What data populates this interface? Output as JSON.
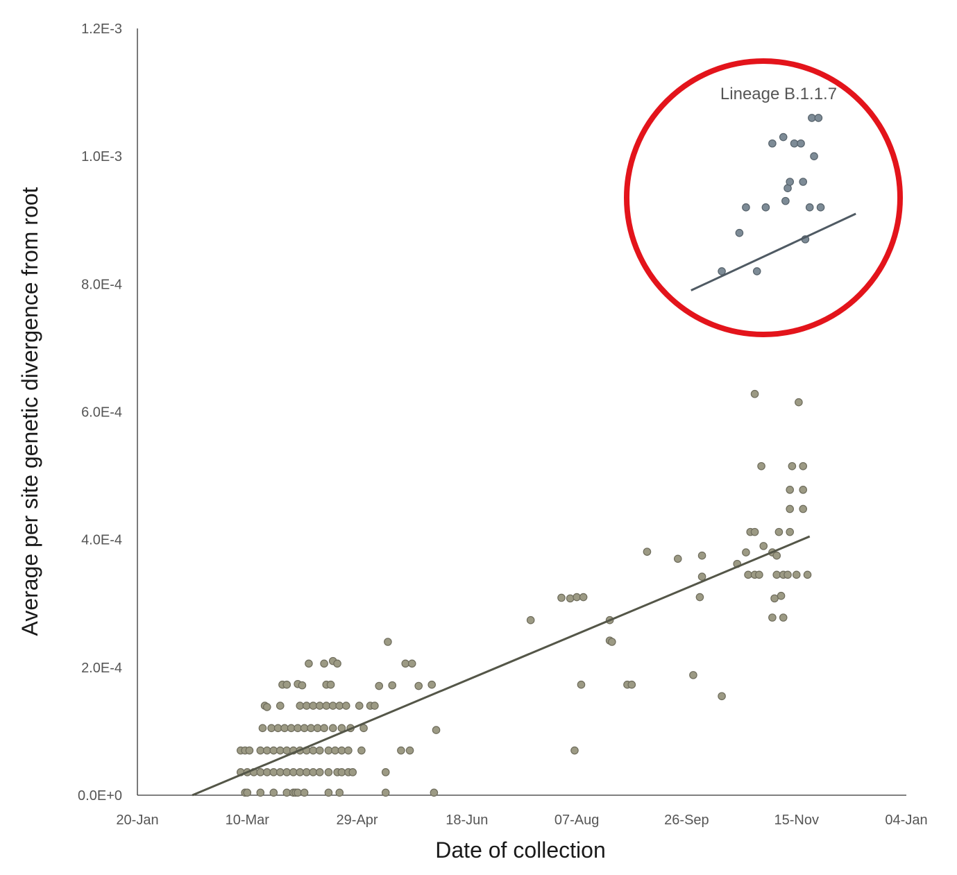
{
  "chart_data": {
    "type": "scatter",
    "xlabel": "Date of collection",
    "ylabel": "Average per site genetic divergence from root",
    "x_ticks": [
      "20-Jan",
      "10-Mar",
      "29-Apr",
      "18-Jun",
      "07-Aug",
      "26-Sep",
      "15-Nov",
      "04-Jan"
    ],
    "y_ticks": [
      "0.0E+0",
      "2.0E-4",
      "4.0E-4",
      "6.0E-4",
      "8.0E-4",
      "1.0E-3",
      "1.2E-3"
    ],
    "xlim": [
      "2020-01-20",
      "2021-01-04"
    ],
    "ylim": [
      0,
      0.0012
    ],
    "grid": false,
    "colors": {
      "main_points": "#9c9a84",
      "main_point_edge": "#6e6c5c",
      "main_trend": "#545648",
      "inset_points": "#7d8b96",
      "inset_point_edge": "#56626b",
      "inset_trend": "#4f5a63",
      "highlight_circle": "#e3141b",
      "axis": "#333333"
    },
    "series": [
      {
        "data": [
          [
            "2020-03-09",
            4e-06
          ],
          [
            "2020-03-10",
            4e-06
          ],
          [
            "2020-03-16",
            4e-06
          ],
          [
            "2020-03-22",
            4e-06
          ],
          [
            "2020-03-28",
            4e-06
          ],
          [
            "2020-03-31",
            4e-06
          ],
          [
            "2020-04-01",
            4e-06
          ],
          [
            "2020-04-02",
            4e-06
          ],
          [
            "2020-04-05",
            4e-06
          ],
          [
            "2020-04-16",
            4e-06
          ],
          [
            "2020-04-21",
            4e-06
          ],
          [
            "2020-05-12",
            4e-06
          ],
          [
            "2020-06-03",
            4e-06
          ],
          [
            "2020-03-07",
            3.6e-05
          ],
          [
            "2020-03-10",
            3.6e-05
          ],
          [
            "2020-03-13",
            3.6e-05
          ],
          [
            "2020-03-16",
            3.6e-05
          ],
          [
            "2020-03-19",
            3.6e-05
          ],
          [
            "2020-03-22",
            3.6e-05
          ],
          [
            "2020-03-25",
            3.6e-05
          ],
          [
            "2020-03-28",
            3.6e-05
          ],
          [
            "2020-03-31",
            3.6e-05
          ],
          [
            "2020-04-03",
            3.6e-05
          ],
          [
            "2020-04-06",
            3.6e-05
          ],
          [
            "2020-04-09",
            3.6e-05
          ],
          [
            "2020-04-12",
            3.6e-05
          ],
          [
            "2020-04-16",
            3.6e-05
          ],
          [
            "2020-04-20",
            3.6e-05
          ],
          [
            "2020-04-22",
            3.6e-05
          ],
          [
            "2020-04-25",
            3.6e-05
          ],
          [
            "2020-04-27",
            3.6e-05
          ],
          [
            "2020-05-12",
            3.6e-05
          ],
          [
            "2020-03-07",
            7e-05
          ],
          [
            "2020-03-09",
            7e-05
          ],
          [
            "2020-03-11",
            7e-05
          ],
          [
            "2020-03-16",
            7e-05
          ],
          [
            "2020-03-19",
            7e-05
          ],
          [
            "2020-03-22",
            7e-05
          ],
          [
            "2020-03-25",
            7e-05
          ],
          [
            "2020-03-28",
            7e-05
          ],
          [
            "2020-03-31",
            7e-05
          ],
          [
            "2020-04-03",
            7e-05
          ],
          [
            "2020-04-06",
            7e-05
          ],
          [
            "2020-04-09",
            7e-05
          ],
          [
            "2020-04-12",
            7e-05
          ],
          [
            "2020-04-16",
            7e-05
          ],
          [
            "2020-04-19",
            7e-05
          ],
          [
            "2020-04-22",
            7e-05
          ],
          [
            "2020-04-25",
            7e-05
          ],
          [
            "2020-05-01",
            7e-05
          ],
          [
            "2020-05-19",
            7e-05
          ],
          [
            "2020-05-23",
            7e-05
          ],
          [
            "2020-08-06",
            7e-05
          ],
          [
            "2020-03-17",
            0.000105
          ],
          [
            "2020-03-21",
            0.000105
          ],
          [
            "2020-03-24",
            0.000105
          ],
          [
            "2020-03-27",
            0.000105
          ],
          [
            "2020-03-30",
            0.000105
          ],
          [
            "2020-04-02",
            0.000105
          ],
          [
            "2020-04-05",
            0.000105
          ],
          [
            "2020-04-08",
            0.000105
          ],
          [
            "2020-04-11",
            0.000105
          ],
          [
            "2020-04-14",
            0.000105
          ],
          [
            "2020-04-18",
            0.000105
          ],
          [
            "2020-04-22",
            0.000105
          ],
          [
            "2020-04-26",
            0.000105
          ],
          [
            "2020-05-02",
            0.000105
          ],
          [
            "2020-06-04",
            0.000102
          ],
          [
            "2020-03-18",
            0.00014
          ],
          [
            "2020-03-19",
            0.000138
          ],
          [
            "2020-03-25",
            0.00014
          ],
          [
            "2020-04-03",
            0.00014
          ],
          [
            "2020-04-06",
            0.00014
          ],
          [
            "2020-04-09",
            0.00014
          ],
          [
            "2020-04-12",
            0.00014
          ],
          [
            "2020-04-15",
            0.00014
          ],
          [
            "2020-04-18",
            0.00014
          ],
          [
            "2020-04-21",
            0.00014
          ],
          [
            "2020-04-24",
            0.00014
          ],
          [
            "2020-04-30",
            0.00014
          ],
          [
            "2020-05-05",
            0.00014
          ],
          [
            "2020-05-07",
            0.00014
          ],
          [
            "2020-03-26",
            0.000173
          ],
          [
            "2020-03-28",
            0.000173
          ],
          [
            "2020-04-02",
            0.000174
          ],
          [
            "2020-04-04",
            0.000172
          ],
          [
            "2020-04-15",
            0.000173
          ],
          [
            "2020-04-17",
            0.000173
          ],
          [
            "2020-05-09",
            0.000171
          ],
          [
            "2020-05-15",
            0.000172
          ],
          [
            "2020-05-27",
            0.000171
          ],
          [
            "2020-06-02",
            0.000173
          ],
          [
            "2020-08-09",
            0.000173
          ],
          [
            "2020-08-30",
            0.000173
          ],
          [
            "2020-09-01",
            0.000173
          ],
          [
            "2020-04-07",
            0.000206
          ],
          [
            "2020-04-14",
            0.000206
          ],
          [
            "2020-04-18",
            0.00021
          ],
          [
            "2020-04-20",
            0.000206
          ],
          [
            "2020-05-21",
            0.000206
          ],
          [
            "2020-05-24",
            0.000206
          ],
          [
            "2020-05-13",
            0.00024
          ],
          [
            "2020-07-17",
            0.000274
          ],
          [
            "2020-07-31",
            0.000309
          ],
          [
            "2020-08-04",
            0.000308
          ],
          [
            "2020-08-07",
            0.00031
          ],
          [
            "2020-08-10",
            0.00031
          ],
          [
            "2020-08-22",
            0.000274
          ],
          [
            "2020-08-22",
            0.000242
          ],
          [
            "2020-08-23",
            0.00024
          ],
          [
            "2020-09-08",
            0.000381
          ],
          [
            "2020-09-22",
            0.00037
          ],
          [
            "2020-09-29",
            0.000188
          ],
          [
            "2020-10-02",
            0.00031
          ],
          [
            "2020-10-03",
            0.000342
          ],
          [
            "2020-10-03",
            0.000375
          ],
          [
            "2020-10-12",
            0.000155
          ],
          [
            "2020-10-19",
            0.000362
          ],
          [
            "2020-10-23",
            0.00038
          ],
          [
            "2020-10-25",
            0.000412
          ],
          [
            "2020-10-24",
            0.000345
          ],
          [
            "2020-10-27",
            0.000345
          ],
          [
            "2020-10-29",
            0.000345
          ],
          [
            "2020-10-27",
            0.000412
          ],
          [
            "2020-10-27",
            0.000628
          ],
          [
            "2020-10-30",
            0.000515
          ],
          [
            "2020-10-31",
            0.00039
          ],
          [
            "2020-11-04",
            0.000278
          ],
          [
            "2020-11-05",
            0.000308
          ],
          [
            "2020-11-06",
            0.000345
          ],
          [
            "2020-11-07",
            0.000412
          ],
          [
            "2020-11-08",
            0.000312
          ],
          [
            "2020-11-09",
            0.000278
          ],
          [
            "2020-11-09",
            0.000345
          ],
          [
            "2020-11-04",
            0.00038
          ],
          [
            "2020-11-06",
            0.000375
          ],
          [
            "2020-11-11",
            0.000345
          ],
          [
            "2020-11-12",
            0.000448
          ],
          [
            "2020-11-12",
            0.000412
          ],
          [
            "2020-11-12",
            0.000478
          ],
          [
            "2020-11-13",
            0.000515
          ],
          [
            "2020-11-15",
            0.000345
          ],
          [
            "2020-11-16",
            0.000615
          ],
          [
            "2020-11-18",
            0.000515
          ],
          [
            "2020-11-18",
            0.000478
          ],
          [
            "2020-11-18",
            0.000448
          ],
          [
            "2020-11-20",
            0.000345
          ]
        ]
      },
      {
        "data": [
          [
            "2020-10-12",
            0.00082
          ],
          [
            "2020-10-20",
            0.00088
          ],
          [
            "2020-10-23",
            0.00092
          ],
          [
            "2020-10-28",
            0.00082
          ],
          [
            "2020-11-01",
            0.00092
          ],
          [
            "2020-11-04",
            0.00102
          ],
          [
            "2020-11-09",
            0.00103
          ],
          [
            "2020-11-10",
            0.00093
          ],
          [
            "2020-11-11",
            0.00095
          ],
          [
            "2020-11-12",
            0.00096
          ],
          [
            "2020-11-14",
            0.00102
          ],
          [
            "2020-11-17",
            0.00102
          ],
          [
            "2020-11-18",
            0.00096
          ],
          [
            "2020-11-19",
            0.00087
          ],
          [
            "2020-11-21",
            0.00092
          ],
          [
            "2020-11-22",
            0.00106
          ],
          [
            "2020-11-23",
            0.001
          ],
          [
            "2020-11-25",
            0.00106
          ],
          [
            "2020-11-26",
            0.00092
          ]
        ]
      }
    ],
    "trendlines": [
      {
        "from": [
          "2020-02-14",
          0
        ],
        "to": [
          "2020-11-21",
          0.000405
        ]
      }
    ],
    "inset": {
      "label": "Lineage B.1.1.7",
      "trend": {
        "from": [
          "2020-09-28",
          0.00079
        ],
        "to": [
          "2020-12-12",
          0.00091
        ]
      }
    }
  }
}
